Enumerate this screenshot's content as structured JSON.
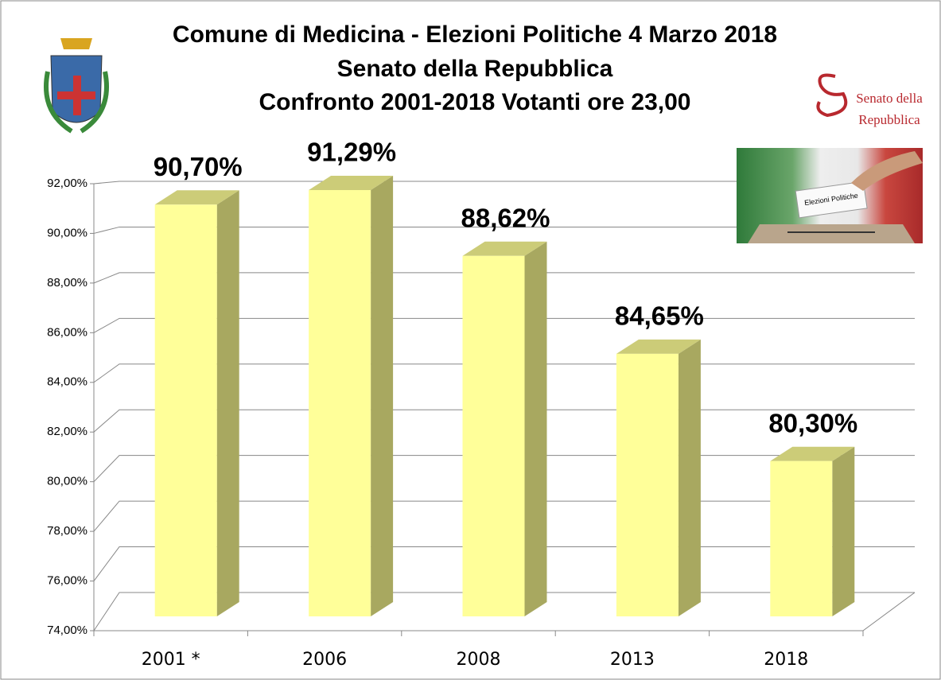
{
  "chart_data": {
    "type": "bar3d",
    "title": "Comune di Medicina - Elezioni Politiche 4 Marzo 2018",
    "subtitle": [
      "Senato della Repubblica",
      "Confronto 2001-2018 Votanti ore 23,00"
    ],
    "logo_text": [
      "Senato della",
      "Repubblica"
    ],
    "image_text": "Elezioni Politiche",
    "categories": [
      "2001 *",
      "2006",
      "2008",
      "2013",
      "2018"
    ],
    "values": [
      90.7,
      91.29,
      88.62,
      84.65,
      80.3
    ],
    "value_labels": [
      "90,70%",
      "91,29%",
      "88,62%",
      "84,65%",
      "80,30%"
    ],
    "color": "#ffff99",
    "ylim": [
      74,
      92
    ],
    "yticks": [
      {
        "value": 74,
        "label": "74,00%"
      },
      {
        "value": 76,
        "label": "76,00%"
      },
      {
        "value": 78,
        "label": "78,00%"
      },
      {
        "value": 80,
        "label": "80,00%"
      },
      {
        "value": 82,
        "label": "82,00%"
      },
      {
        "value": 84,
        "label": "84,00%"
      },
      {
        "value": 86,
        "label": "86,00%"
      },
      {
        "value": 88,
        "label": "88,00%"
      },
      {
        "value": 90,
        "label": "90,00%"
      },
      {
        "value": 92,
        "label": "92,00%"
      }
    ],
    "grid": true
  }
}
